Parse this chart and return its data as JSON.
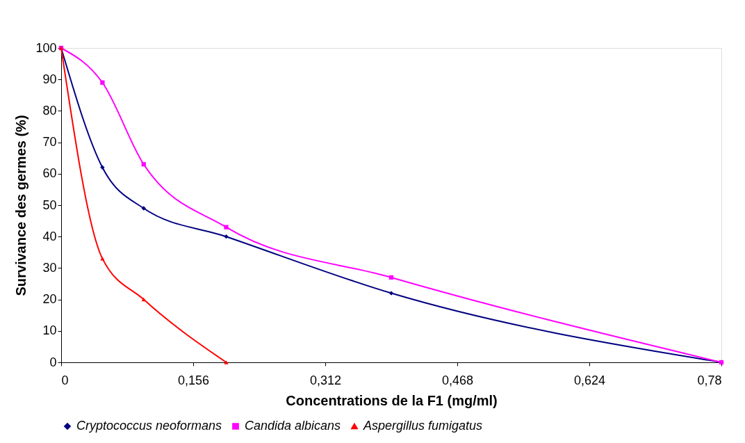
{
  "chart_data": {
    "type": "line",
    "xlabel": "Concentrations de la F1  (mg/ml)",
    "ylabel": "Survivance des germes (%)",
    "x": [
      0,
      0.04875,
      0.0975,
      0.195,
      0.39,
      0.78
    ],
    "series": [
      {
        "name": "Cryptococcus neoformans",
        "color": "#000080",
        "marker": "diamond",
        "values": [
          100,
          62,
          49,
          40,
          22,
          0
        ]
      },
      {
        "name": "Candida albicans",
        "color": "#ff00ff",
        "marker": "square",
        "values": [
          100,
          89,
          63,
          43,
          27,
          0
        ]
      },
      {
        "name": "Aspergillus fumigatus",
        "color": "#ff0000",
        "marker": "triangle",
        "x": [
          0,
          0.04875,
          0.0975,
          0.195
        ],
        "values": [
          100,
          33,
          20,
          0
        ]
      }
    ],
    "xlim": [
      0,
      0.78
    ],
    "ylim": [
      0,
      100
    ],
    "xticks": [
      0,
      {
        "value": 0.156,
        "label": "0,156"
      },
      {
        "value": 0.312,
        "label": "0,312"
      },
      {
        "value": 0.468,
        "label": "0,468"
      },
      {
        "value": 0.624,
        "label": "0,624"
      },
      {
        "value": 0.78,
        "label": "0,78"
      }
    ],
    "yticks": [
      0,
      10,
      20,
      30,
      40,
      50,
      60,
      70,
      80,
      90,
      100
    ],
    "legend": "bottom",
    "grid": false,
    "line_style": "solid"
  }
}
